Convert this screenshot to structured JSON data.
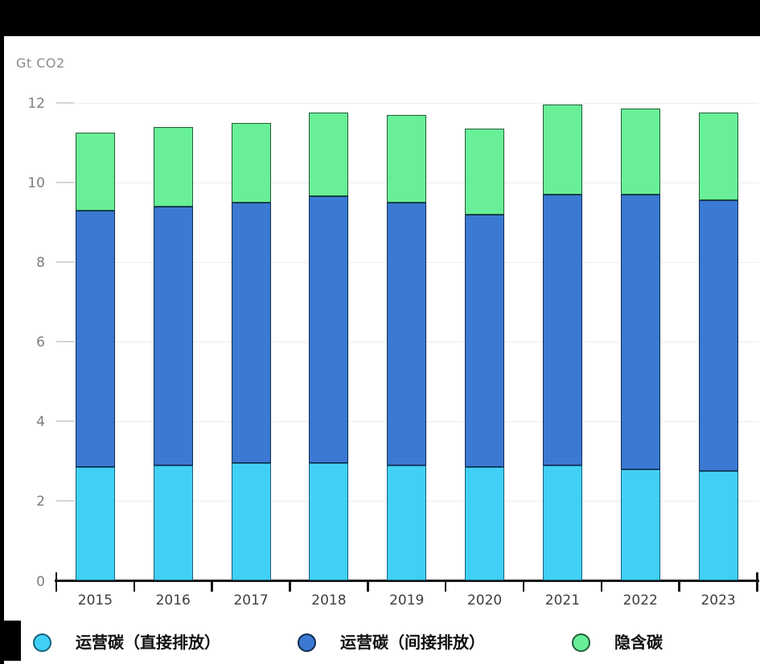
{
  "chart_data": {
    "type": "bar",
    "stacked": true,
    "unit_label": "Gt CO2",
    "categories": [
      "2015",
      "2016",
      "2017",
      "2018",
      "2019",
      "2020",
      "2021",
      "2022",
      "2023"
    ],
    "series": [
      {
        "name": "运营碳（直接排放）",
        "color": "#41D0F5",
        "border_color": "#155E7D",
        "values": [
          2.85,
          2.9,
          2.95,
          2.95,
          2.9,
          2.85,
          2.9,
          2.8,
          2.75
        ]
      },
      {
        "name": "运营碳（间接排放）",
        "color": "#3B79D2",
        "border_color": "#0F2B4E",
        "values": [
          6.45,
          6.5,
          6.55,
          6.7,
          6.6,
          6.35,
          6.8,
          6.9,
          6.8
        ]
      },
      {
        "name": "隐含碳",
        "color": "#69EF98",
        "border_color": "#215E38",
        "values": [
          1.95,
          2.0,
          2.0,
          2.1,
          2.2,
          2.15,
          2.25,
          2.15,
          2.2
        ]
      }
    ],
    "totals": [
      11.25,
      11.4,
      11.5,
      11.75,
      11.7,
      11.35,
      11.95,
      11.85,
      11.75
    ],
    "ylim": [
      0,
      12
    ],
    "yticks": [
      0,
      2,
      4,
      6,
      8,
      10,
      12
    ],
    "grid": true,
    "legend_position": "bottom"
  },
  "style": {
    "background": "#ffffff",
    "letterbox_color": "#000000",
    "grid_color": "#ececec",
    "axis_color": "#151515",
    "y_label_color": "#7d7d7d",
    "x_label_color": "#3e3e3e",
    "unit_label_color": "#8b8b8b",
    "legend_text_color": "#0f0f0f"
  }
}
